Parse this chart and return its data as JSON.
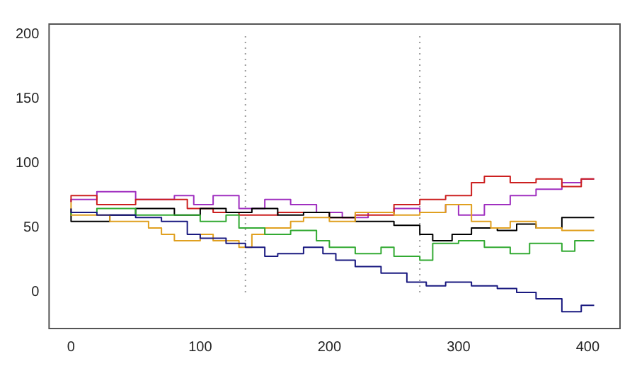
{
  "chart_data": {
    "type": "step",
    "xlim": [
      -17,
      425
    ],
    "ylim": [
      -28,
      208
    ],
    "xticks": [
      0,
      100,
      200,
      300,
      400
    ],
    "yticks": [
      0,
      50,
      100,
      150,
      200
    ],
    "grid": false,
    "legend": false,
    "marker": "none",
    "line_style": "solid",
    "ref_lines": [
      {
        "axis": "x",
        "value": 135,
        "color": "#999999",
        "line_style": "dotted"
      },
      {
        "axis": "x",
        "value": 270,
        "color": "#999999",
        "line_style": "dotted"
      }
    ],
    "series": [
      {
        "color": "#1a1a80",
        "x": [
          0,
          20,
          50,
          70,
          90,
          100,
          120,
          135,
          150,
          160,
          180,
          195,
          205,
          220,
          240,
          260,
          275,
          290,
          310,
          330,
          345,
          360,
          380,
          395,
          405
        ],
        "values": [
          65,
          62,
          60,
          58,
          55,
          45,
          42,
          38,
          35,
          28,
          30,
          35,
          30,
          25,
          20,
          15,
          8,
          5,
          8,
          5,
          3,
          0,
          -5,
          -15,
          -10
        ]
      },
      {
        "color": "#33aa33",
        "x": [
          0,
          20,
          50,
          80,
          100,
          120,
          130,
          150,
          170,
          190,
          200,
          220,
          240,
          250,
          270,
          280,
          300,
          320,
          340,
          355,
          370,
          380,
          390,
          405
        ],
        "values": [
          60,
          62,
          65,
          60,
          60,
          55,
          60,
          50,
          45,
          48,
          40,
          35,
          30,
          35,
          28,
          25,
          38,
          40,
          35,
          30,
          38,
          38,
          32,
          40
        ]
      },
      {
        "color": "#e0a020",
        "x": [
          0,
          30,
          60,
          70,
          80,
          100,
          110,
          130,
          140,
          150,
          170,
          180,
          200,
          220,
          250,
          270,
          290,
          310,
          325,
          340,
          360,
          380,
          405
        ],
        "values": [
          70,
          60,
          55,
          50,
          45,
          40,
          45,
          40,
          35,
          45,
          50,
          55,
          58,
          55,
          62,
          60,
          62,
          68,
          55,
          50,
          55,
          50,
          48
        ]
      },
      {
        "color": "#000000",
        "x": [
          0,
          30,
          50,
          80,
          100,
          120,
          140,
          160,
          180,
          200,
          220,
          250,
          270,
          280,
          295,
          310,
          330,
          345,
          360,
          380,
          390,
          405
        ],
        "values": [
          65,
          55,
          60,
          65,
          60,
          65,
          62,
          65,
          60,
          62,
          58,
          55,
          52,
          45,
          40,
          45,
          50,
          48,
          53,
          50,
          58,
          58
        ]
      },
      {
        "color": "#cc2020",
        "x": [
          0,
          20,
          50,
          90,
          110,
          130,
          160,
          200,
          220,
          250,
          270,
          290,
          310,
          320,
          340,
          360,
          380,
          395,
          405
        ],
        "values": [
          70,
          75,
          68,
          72,
          65,
          62,
          60,
          62,
          58,
          60,
          68,
          72,
          75,
          85,
          90,
          85,
          88,
          82,
          88
        ]
      },
      {
        "color": "#a030c0",
        "x": [
          0,
          20,
          50,
          80,
          95,
          110,
          130,
          150,
          170,
          190,
          210,
          230,
          250,
          270,
          290,
          300,
          320,
          340,
          360,
          380,
          395,
          405
        ],
        "values": [
          70,
          72,
          78,
          72,
          75,
          68,
          75,
          65,
          72,
          68,
          62,
          58,
          62,
          65,
          62,
          68,
          60,
          68,
          75,
          80,
          85,
          88
        ]
      }
    ]
  }
}
